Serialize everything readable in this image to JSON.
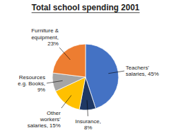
{
  "chart_data": {
    "type": "pie",
    "title": "Total school spending 2001",
    "categories": [
      "Teachers'\nsalaries, 45%",
      "Insurance,\n8%",
      "Other\nworkers'\nsalaries, 15%",
      "Resources\ne.g. Books,\n9%",
      "Furniture &\nequipment,\n23%"
    ],
    "values": [
      45,
      8,
      15,
      9,
      23
    ],
    "colors": [
      "#4472C4",
      "#1F3864",
      "#FFC000",
      "#A5A5A5",
      "#ED7D31"
    ]
  }
}
